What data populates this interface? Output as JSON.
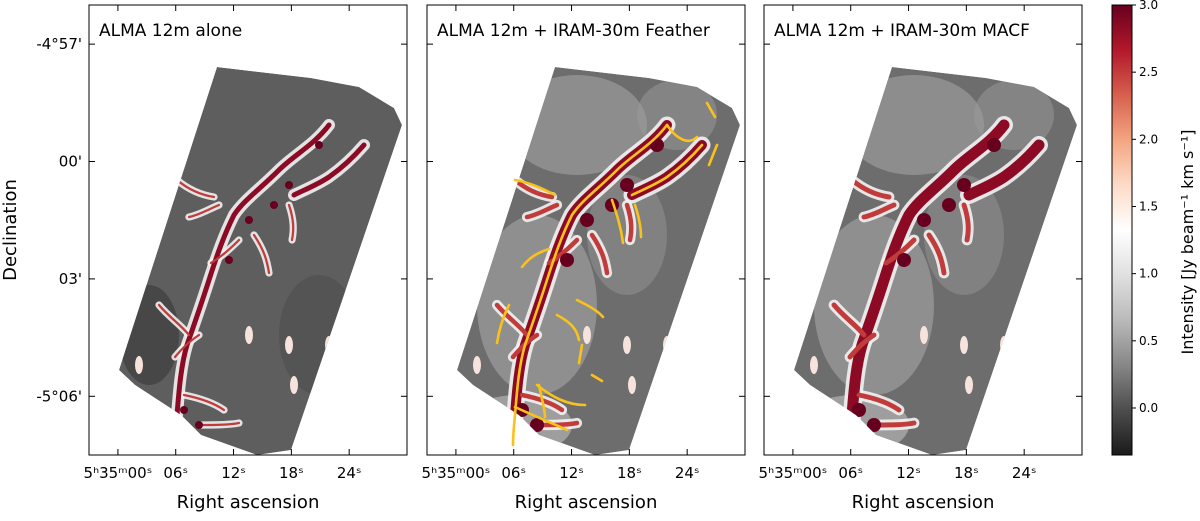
{
  "chart_data": {
    "type": "heatmap",
    "panels": [
      {
        "title": "ALMA 12m alone",
        "filaments": false,
        "model": "alone"
      },
      {
        "title": "ALMA 12m + IRAM-30m Feather",
        "filaments": true,
        "model": "feather"
      },
      {
        "title": "ALMA 12m + IRAM-30m MACF",
        "filaments": false,
        "model": "macf"
      }
    ],
    "xlabel": "Right ascension",
    "ylabel": "Declination",
    "x_ticks": [
      {
        "seconds": 0,
        "label": "5ʰ35ᵐ00ˢ"
      },
      {
        "seconds": 6,
        "label": "06ˢ"
      },
      {
        "seconds": 12,
        "label": "12ˢ"
      },
      {
        "seconds": 18,
        "label": "18ˢ"
      },
      {
        "seconds": 24,
        "label": "24ˢ"
      }
    ],
    "y_ticks": [
      {
        "arcmin": -306,
        "label": "-5°06'"
      },
      {
        "arcmin": -303,
        "label": "03'"
      },
      {
        "arcmin": -300,
        "label": "00'"
      },
      {
        "arcmin": -297,
        "label": "-4°57'"
      }
    ],
    "xlim_seconds": [
      -3,
      30
    ],
    "ylim_arcmin": [
      -307.5,
      -296.0
    ],
    "colorbar": {
      "label": "Intensity [Jy beam⁻¹ km s⁻¹]",
      "range": [
        -0.35,
        3.0
      ],
      "ticks": [
        "0.0",
        "0.5",
        "1.0",
        "1.5",
        "2.0",
        "2.5",
        "3.0"
      ],
      "tick_values": [
        0.0,
        0.5,
        1.0,
        1.5,
        2.0,
        2.5,
        3.0
      ],
      "colormap": "RdGy_r",
      "colors": [
        "#1a1a1a",
        "#4d4d4d",
        "#878787",
        "#bababa",
        "#e0e0e0",
        "#ffffff",
        "#fddbc7",
        "#f4a582",
        "#d6604d",
        "#b2182b",
        "#67001f"
      ]
    },
    "grid": false
  }
}
